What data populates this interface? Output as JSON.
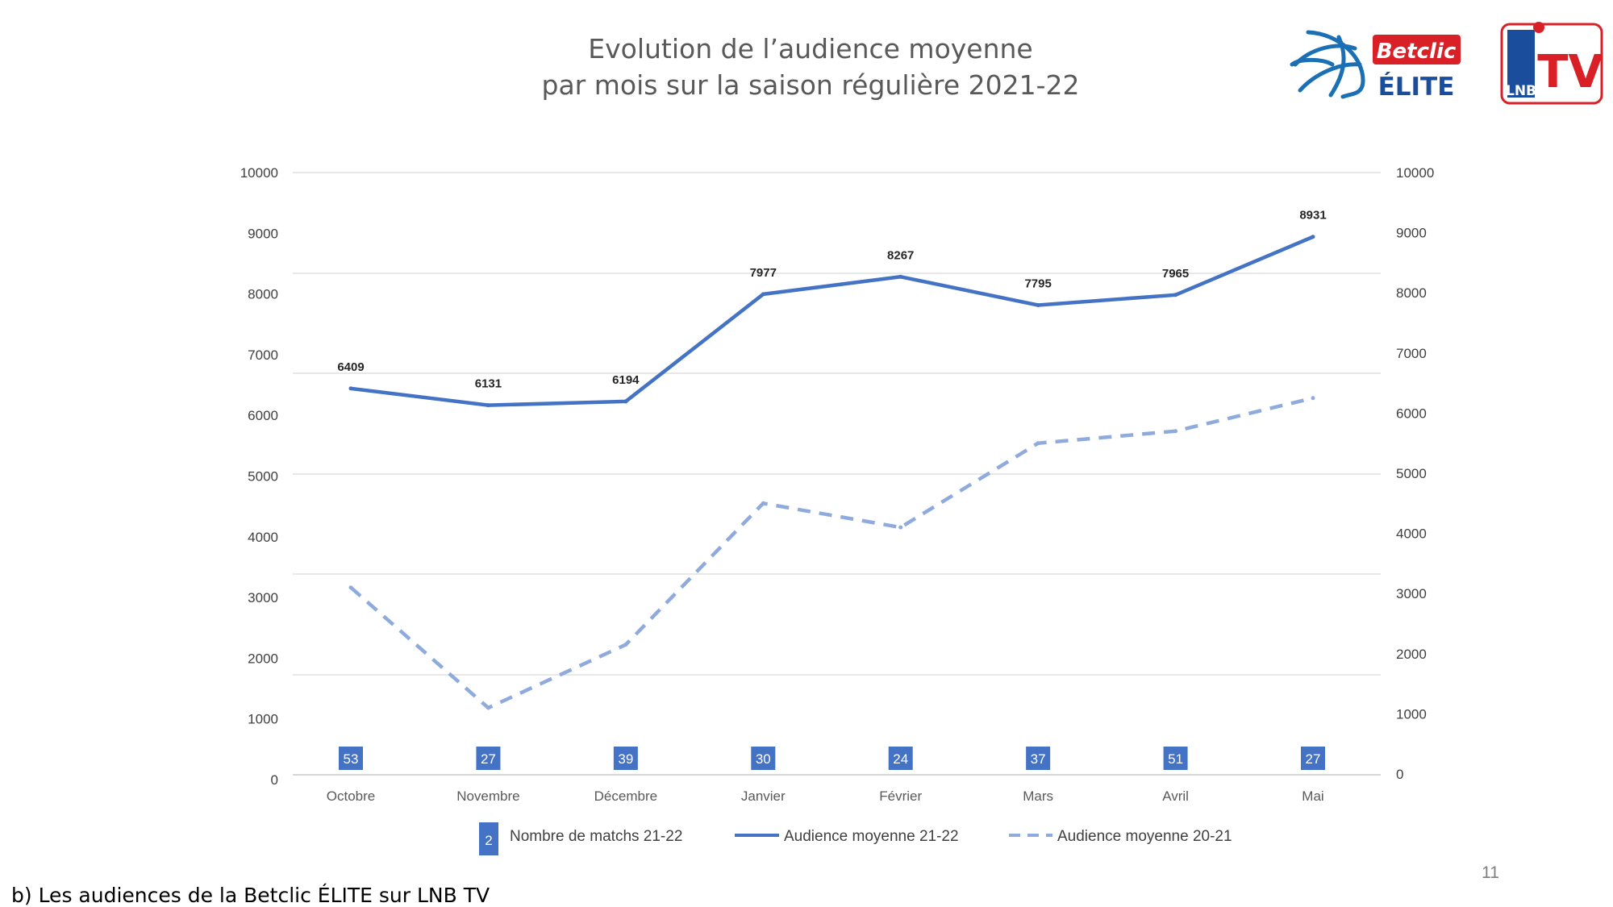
{
  "slide": {
    "title_line1": "Evolution de l’audience moyenne",
    "title_line2": "par mois sur la saison régulière 2021-22",
    "caption": "b) Les audiences de la Betclic ÉLITE sur LNB TV",
    "page_number": "11"
  },
  "logos": {
    "betclic_line1": "Betclic",
    "betclic_line2": "ÉLITE",
    "lnbtv_text": "TV",
    "lnb_small": "LNB",
    "colors": {
      "blue": "#1a4d9c",
      "red": "#d92027"
    }
  },
  "chart_data": {
    "type": "line",
    "categories": [
      "Octobre",
      "Novembre",
      "Décembre",
      "Janvier",
      "Février",
      "Mars",
      "Avril",
      "Mai"
    ],
    "y_left": {
      "min": 0,
      "max": 10000,
      "ticks": [
        "0",
        "1000",
        "2000",
        "3000",
        "4000",
        "5000",
        "6000",
        "7000",
        "8000",
        "9000",
        "10000"
      ]
    },
    "y_right": {
      "min": 0,
      "max": 10000,
      "ticks": [
        "0",
        "1000",
        "2000",
        "3000",
        "4000",
        "5000",
        "6000",
        "7000",
        "8000",
        "9000",
        "10000"
      ]
    },
    "series": [
      {
        "name": "Nombre de matchs 21-22",
        "kind": "badge",
        "color": "#4472c4",
        "values": [
          53,
          27,
          39,
          30,
          24,
          37,
          51,
          27
        ]
      },
      {
        "name": "Audience moyenne 21-22",
        "kind": "line",
        "color": "#4472c4",
        "values": [
          6409,
          6131,
          6194,
          7977,
          8267,
          7795,
          7965,
          8931
        ],
        "labels": [
          "6409",
          "6131",
          "6194",
          "7977",
          "8267",
          "7795",
          "7965",
          "8931"
        ]
      },
      {
        "name": "Audience moyenne 20-21",
        "kind": "dashed",
        "color": "#8faadc",
        "values": [
          3100,
          1100,
          2150,
          4500,
          4100,
          5500,
          5700,
          6250
        ]
      }
    ],
    "legend": {
      "position": "bottom",
      "badge_sample": "2"
    },
    "grid": true
  }
}
